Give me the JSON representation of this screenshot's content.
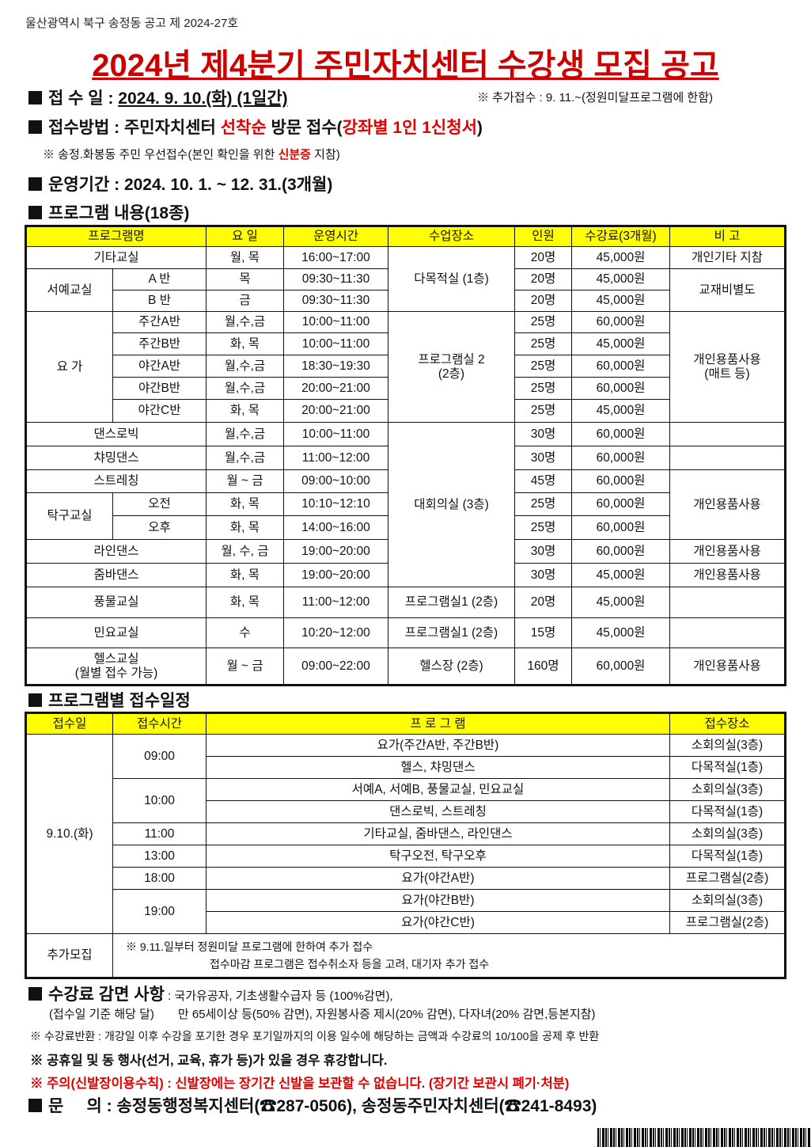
{
  "notice_no": "울산광역시 북구 송정동 공고 제 2024-27호",
  "title": "2024년 제4분기 주민자치센터 수강생 모집 공고",
  "reception": {
    "label": "접 수 일 : ",
    "date": "2024. 9. 10.(화) (1일간)",
    "extra": "※ 추가접수 : 9. 11.~(정원미달프로그램에 한함)"
  },
  "method": {
    "label": "접수방법 : 주민자치센터 ",
    "first": "선착순",
    "mid": " 방문 접수(",
    "red": "강좌별 1인 1신청서",
    "end": ")"
  },
  "priority": {
    "pre": "※ 송정.화봉동 주민 우선접수(본인 확인을 위한 ",
    "red": "신분증",
    "post": " 지참)"
  },
  "period": "운영기간 : 2024. 10. 1. ~ 12. 31.(3개월)",
  "programs_heading": "프로그램 내용(18종)",
  "t1": {
    "headers": [
      "프로그램명",
      "요 일",
      "운영시간",
      "수업장소",
      "인원",
      "수강료(3개월)",
      "비 고"
    ],
    "r": [
      [
        "기타교실",
        "",
        "월, 목",
        "16:00~17:00",
        "다목적실 (1층)",
        "20명",
        "45,000원",
        "개인기타 지참"
      ],
      [
        "서예교실",
        "A 반",
        "목",
        "09:30~11:30",
        "",
        "20명",
        "45,000원",
        "교재비별도"
      ],
      [
        "",
        "B 반",
        "금",
        "09:30~11:30",
        "",
        "20명",
        "45,000원",
        ""
      ],
      [
        "요  가",
        "주간A반",
        "월,수,금",
        "10:00~11:00",
        "프로그램실 2\n(2층)",
        "25명",
        "60,000원",
        "개인용품사용\n(매트 등)"
      ],
      [
        "",
        "주간B반",
        "화, 목",
        "10:00~11:00",
        "",
        "25명",
        "45,000원",
        ""
      ],
      [
        "",
        "야간A반",
        "월,수,금",
        "18:30~19:30",
        "",
        "25명",
        "60,000원",
        ""
      ],
      [
        "",
        "야간B반",
        "월,수,금",
        "20:00~21:00",
        "",
        "25명",
        "60,000원",
        ""
      ],
      [
        "",
        "야간C반",
        "화, 목",
        "20:00~21:00",
        "",
        "25명",
        "45,000원",
        ""
      ],
      [
        "댄스로빅",
        "",
        "월,수,금",
        "10:00~11:00",
        "대회의실 (3층)",
        "30명",
        "60,000원",
        ""
      ],
      [
        "챠밍댄스",
        "",
        "월,수,금",
        "11:00~12:00",
        "",
        "30명",
        "60,000원",
        ""
      ],
      [
        "스트레칭",
        "",
        "월 ~ 금",
        "09:00~10:00",
        "",
        "45명",
        "60,000원",
        "개인용품사용"
      ],
      [
        "탁구교실",
        "오전",
        "화, 목",
        "10:10~12:10",
        "",
        "25명",
        "60,000원",
        ""
      ],
      [
        "",
        "오후",
        "화, 목",
        "14:00~16:00",
        "",
        "25명",
        "60,000원",
        ""
      ],
      [
        "라인댄스",
        "",
        "월, 수, 금",
        "19:00~20:00",
        "",
        "30명",
        "60,000원",
        "개인용품사용"
      ],
      [
        "줌바댄스",
        "",
        "화, 목",
        "19:00~20:00",
        "",
        "30명",
        "45,000원",
        "개인용품사용"
      ],
      [
        "풍물교실",
        "",
        "화, 목",
        "11:00~12:00",
        "프로그램실1 (2층)",
        "20명",
        "45,000원",
        ""
      ],
      [
        "민요교실",
        "",
        "수",
        "10:20~12:00",
        "프로그램실1 (2층)",
        "15명",
        "45,000원",
        ""
      ],
      [
        "헬스교실\n(월별 접수 가능)",
        "",
        "월 ~ 금",
        "09:00~22:00",
        "헬스장 (2층)",
        "160명",
        "60,000원",
        "개인용품사용"
      ]
    ]
  },
  "schedule_heading": "프로그램별 접수일정",
  "t2": {
    "headers": [
      "접수일",
      "접수시간",
      "프  로  그  램",
      "접수장소"
    ],
    "date": "9.10.(화)",
    "times": [
      "09:00",
      "10:00",
      "11:00",
      "13:00",
      "18:00",
      "19:00"
    ],
    "rows": [
      [
        "요가(주간A반, 주간B반)",
        "소회의실(3층)"
      ],
      [
        "헬스, 챠밍댄스",
        "다목적실(1층)"
      ],
      [
        "서예A, 서예B, 풍물교실, 민요교실",
        "소회의실(3층)"
      ],
      [
        "댄스로빅, 스트레칭",
        "다목적실(1층)"
      ],
      [
        "기타교실, 줌바댄스, 라인댄스",
        "소회의실(3층)"
      ],
      [
        "탁구오전, 탁구오후",
        "다목적실(1층)"
      ],
      [
        "요가(야간A반)",
        "프로그램실(2층)"
      ],
      [
        "요가(야간B반)",
        "소회의실(3층)"
      ],
      [
        "요가(야간C반)",
        "프로그램실(2층)"
      ]
    ],
    "extra_label": "추가모집",
    "extra_1": "※ 9.11.일부터 정원미달 프로그램에 한하여 추가 접수",
    "extra_2": "접수마감 프로그램은 접수취소자 등을 고려, 대기자 추가 접수"
  },
  "discount": {
    "label": "수강료 감면 사항",
    "l1": " : 국가유공자, 기초생활수급자 등 (100%감면),",
    "l2a": "(접수일 기준 해당 달)",
    "l2b": "만 65세이상 등(50% 감면), 자원봉사증 제시(20% 감면), 다자녀(20% 감면,등본지참)"
  },
  "refund": "※ 수강료반환 : 개강일 이후 수강을 포기한 경우 포기일까지의 이용 일수에 해당하는 금액과 수강료의 10/100을 공제 후 반환",
  "holiday": "※ 공휴일 및 동 행사(선거, 교육, 휴가 등)가 있을 경우 휴강합니다.",
  "caution": "※ 주의(신발장이용수칙) : 신발장에는 장기간 신발을 보관할 수 없습니다. (장기간 보관시 폐기·처분)",
  "contact": "문     의 : 송정동행정복지센터(☎287-0506), 송정동주민자치센터(☎241-8493)"
}
